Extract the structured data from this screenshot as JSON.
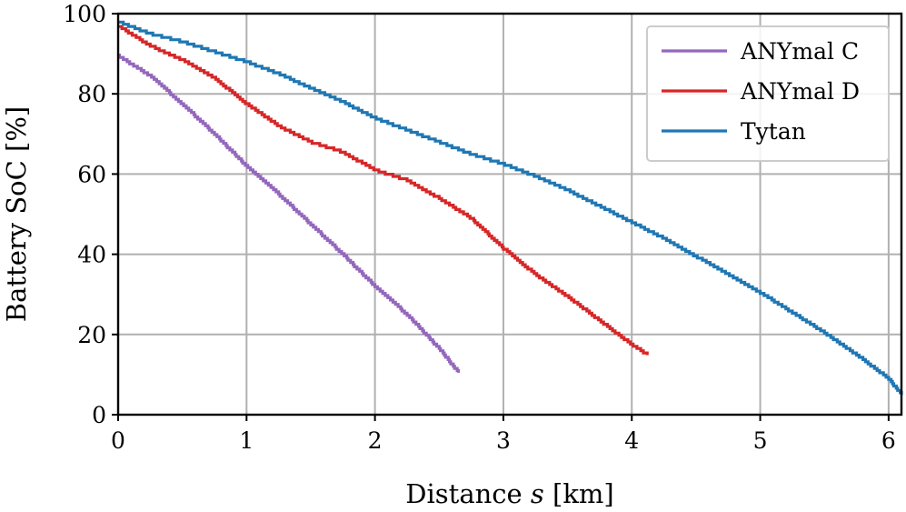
{
  "chart_data": {
    "type": "line",
    "title": "",
    "xlabel_parts": {
      "prefix": "Distance ",
      "var": "s",
      "suffix": " [km]"
    },
    "ylabel": "Battery SoC [%]",
    "xlim": [
      0,
      6.1
    ],
    "ylim": [
      0,
      100
    ],
    "xticks": [
      0,
      1,
      2,
      3,
      4,
      5,
      6
    ],
    "yticks": [
      0,
      20,
      40,
      60,
      80,
      100
    ],
    "grid": true,
    "legend_position": "top-right",
    "series": [
      {
        "name": "ANYmal C",
        "color": "#9467bd",
        "points": [
          [
            0,
            89.5
          ],
          [
            0.25,
            84.5
          ],
          [
            0.5,
            77.5
          ],
          [
            0.75,
            70
          ],
          [
            1.0,
            62
          ],
          [
            1.25,
            55
          ],
          [
            1.5,
            47.5
          ],
          [
            1.75,
            40
          ],
          [
            2.0,
            32
          ],
          [
            2.25,
            25
          ],
          [
            2.5,
            16.5
          ],
          [
            2.65,
            10.5
          ]
        ]
      },
      {
        "name": "ANYmal D",
        "color": "#d62728",
        "points": [
          [
            0,
            97
          ],
          [
            0.25,
            92
          ],
          [
            0.5,
            88.5
          ],
          [
            0.75,
            84
          ],
          [
            1.0,
            77.5
          ],
          [
            1.25,
            72
          ],
          [
            1.5,
            68
          ],
          [
            1.75,
            65.5
          ],
          [
            2.0,
            61
          ],
          [
            2.25,
            58.5
          ],
          [
            2.5,
            54
          ],
          [
            2.75,
            49
          ],
          [
            3.0,
            41.5
          ],
          [
            3.25,
            35
          ],
          [
            3.5,
            29.5
          ],
          [
            3.75,
            23.5
          ],
          [
            4.0,
            17.5
          ],
          [
            4.12,
            15
          ]
        ]
      },
      {
        "name": "Tytan",
        "color": "#1f77b4",
        "points": [
          [
            0,
            98
          ],
          [
            0.25,
            95
          ],
          [
            0.5,
            93
          ],
          [
            0.75,
            90.5
          ],
          [
            1.0,
            88
          ],
          [
            1.25,
            85
          ],
          [
            1.5,
            81.5
          ],
          [
            1.75,
            78
          ],
          [
            2.0,
            74
          ],
          [
            2.25,
            71
          ],
          [
            2.5,
            68
          ],
          [
            2.75,
            65
          ],
          [
            3.0,
            62.5
          ],
          [
            3.25,
            59.5
          ],
          [
            3.5,
            56
          ],
          [
            3.75,
            52
          ],
          [
            4.0,
            48
          ],
          [
            4.25,
            44
          ],
          [
            4.5,
            39.5
          ],
          [
            4.75,
            35
          ],
          [
            5.0,
            30.5
          ],
          [
            5.25,
            25.5
          ],
          [
            5.5,
            20.5
          ],
          [
            5.75,
            15
          ],
          [
            6.0,
            9
          ],
          [
            6.1,
            5
          ]
        ]
      }
    ]
  }
}
